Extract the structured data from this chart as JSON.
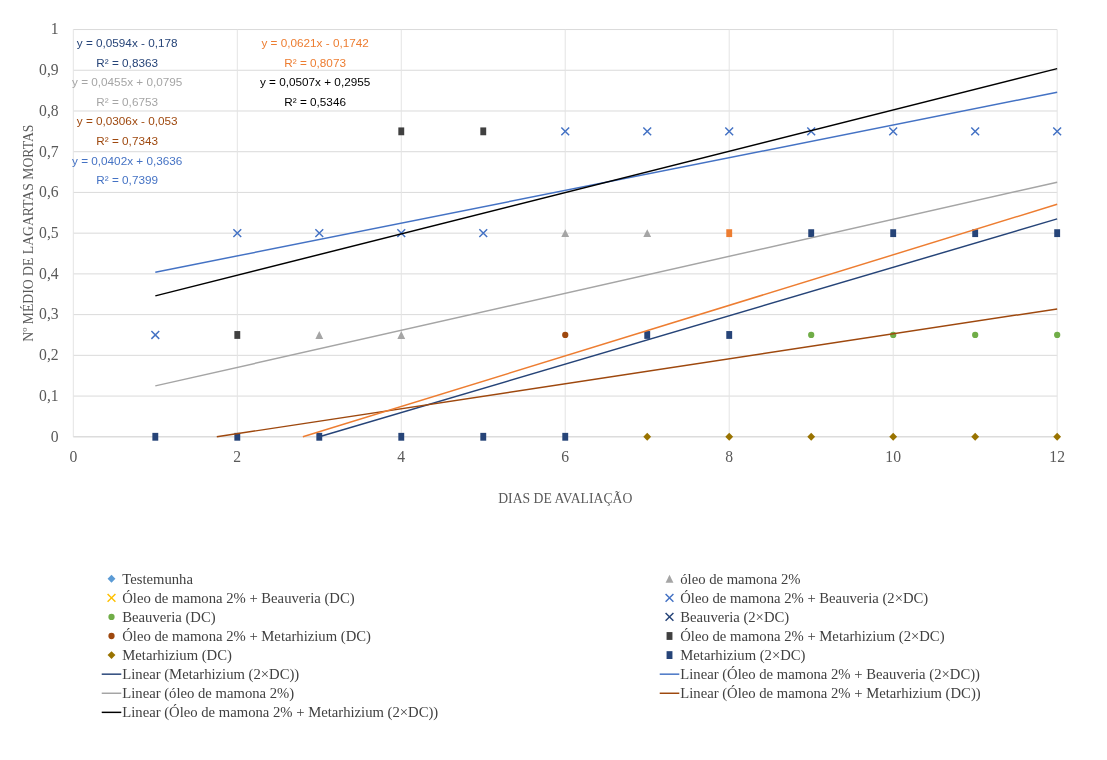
{
  "chart_data": {
    "type": "scatter",
    "xlabel": "DIAS DE AVALIAÇÃO",
    "ylabel": "Nº MÉDIO DE LAGARTAS MORTAS",
    "xlim": [
      0,
      12
    ],
    "ylim": [
      0,
      1
    ],
    "xticks": [
      0,
      2,
      4,
      6,
      8,
      10,
      12
    ],
    "yticks": [
      0,
      {
        "value": 0.1,
        "label": "0,1"
      },
      {
        "value": 0.2,
        "label": "0,2"
      },
      {
        "value": 0.3,
        "label": "0,3"
      },
      {
        "value": 0.4,
        "label": "0,4"
      },
      {
        "value": 0.5,
        "label": "0,5"
      },
      {
        "value": 0.6,
        "label": "0,6"
      },
      {
        "value": 0.7,
        "label": "0,7"
      },
      {
        "value": 0.8,
        "label": "0,8"
      },
      {
        "value": 0.9,
        "label": "0,9"
      },
      1
    ],
    "grid": true,
    "legend": "bottom",
    "annotations": [
      "y = 0,0594x - 0,178\nR² = 0,8363",
      "y = 0,0402x + 0,3636\nR² = 0,7399",
      "y = 0,0455x + 0,0795\nR² = 0,6753",
      "y = 0,0306x - 0,053\nR² = 0,7343",
      "y = 0,0507x + 0,2955\nR² = 0,5346",
      "y = 0,0621x - 0,1742\nR² = 0,8073"
    ],
    "series": [
      {
        "name": "Testemunha",
        "color": "#5b9bd5",
        "marker": "diamond"
      },
      {
        "color": "#ed7d31",
        "marker": "square",
        "x": [
          8
        ],
        "values": [
          0.5
        ]
      },
      {
        "name": "óleo de mamona 2%",
        "color": "#a5a5a5",
        "marker": "triangle",
        "x": [
          3,
          4,
          6,
          7
        ],
        "values": [
          0.25,
          0.25,
          0.5,
          0.5
        ]
      },
      {
        "name": "Óleo de mamona 2% + Beauveria (DC)",
        "color": "#ffc000",
        "marker": "cross"
      },
      {
        "name": "Óleo de mamona 2% + Beauveria (2×DC)",
        "color": "#4472c4",
        "marker": "cross",
        "x": [
          1,
          2,
          3,
          4,
          5,
          6,
          7,
          8,
          9,
          10,
          11,
          12
        ],
        "values": [
          0.25,
          0.5,
          0.5,
          0.5,
          0.5,
          0.75,
          0.75,
          0.75,
          0.75,
          0.75,
          0.75,
          0.75
        ]
      },
      {
        "name": "Beauveria (DC)",
        "color": "#70ad47",
        "marker": "circle",
        "x": [
          9,
          10,
          11,
          12
        ],
        "values": [
          0.25,
          0.25,
          0.25,
          0.25
        ]
      },
      {
        "name": "Beauveria (2×DC)",
        "color": "#264478",
        "marker": "cross"
      },
      {
        "name": "Óleo de mamona 2% + Metarhizium (DC)",
        "color": "#9e480e",
        "marker": "circle",
        "x": [
          6
        ],
        "values": [
          0.25
        ]
      },
      {
        "name": "Óleo de mamona 2% + Metarhizium (2×DC)",
        "color": "#404040",
        "marker": "square",
        "x": [
          2,
          4,
          5
        ],
        "values": [
          0.25,
          0.75,
          0.75
        ]
      },
      {
        "name": "Metarhizium (DC)",
        "color": "#997300",
        "marker": "diamond",
        "x": [
          7,
          8,
          9,
          10,
          11,
          12
        ],
        "values": [
          0,
          0,
          0,
          0,
          0,
          0
        ]
      },
      {
        "name": "Metarhizium (2×DC)",
        "color": "#264478",
        "marker": "square",
        "x": [
          1,
          2,
          3,
          4,
          5,
          6,
          7,
          8,
          9,
          10,
          11,
          12
        ],
        "values": [
          0,
          0,
          0,
          0,
          0,
          0,
          0.25,
          0.25,
          0.5,
          0.5,
          0.5,
          0.5
        ]
      },
      {
        "name": "Linear (Metarhizium (2×DC))",
        "type": "line",
        "color": "#264478",
        "x": [
          3,
          12
        ],
        "values": [
          0,
          0.535
        ]
      },
      {
        "name": "Linear (Óleo de mamona 2% + Beauveria (2×DC))",
        "type": "line",
        "color": "#4472c4",
        "x": [
          1,
          12
        ],
        "values": [
          0.404,
          0.846
        ]
      },
      {
        "name": "Linear (óleo de mamona 2%)",
        "type": "line",
        "color": "#a5a5a5",
        "x": [
          1,
          12
        ],
        "values": [
          0.125,
          0.625
        ]
      },
      {
        "name": "Linear (Óleo de mamona 2% + Metarhizium (DC))",
        "type": "line",
        "color": "#9e480e",
        "x": [
          1.75,
          12
        ],
        "values": [
          0,
          0.314
        ]
      },
      {
        "name": "Linear (Óleo de mamona 2% + Metarhizium (2×DC))",
        "type": "line",
        "color": "#000000",
        "x": [
          1,
          12
        ],
        "values": [
          0.346,
          0.904
        ]
      },
      {
        "type": "line",
        "color": "#ed7d31",
        "x": [
          2.8,
          12
        ],
        "values": [
          0,
          0.571
        ]
      }
    ]
  }
}
